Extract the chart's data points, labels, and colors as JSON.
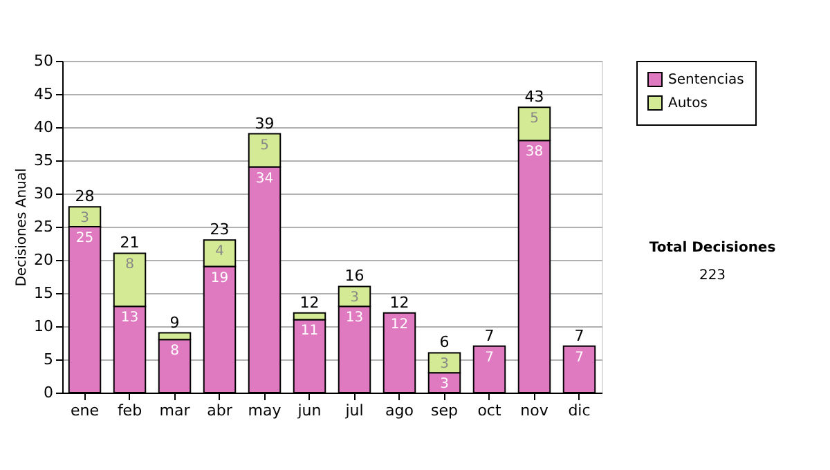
{
  "chart_data": {
    "type": "bar",
    "stacked": true,
    "ylabel": "Decisiones Anual",
    "categories": [
      "ene",
      "feb",
      "mar",
      "abr",
      "may",
      "jun",
      "jul",
      "ago",
      "sep",
      "oct",
      "nov",
      "dic"
    ],
    "series": [
      {
        "name": "Sentencias",
        "color": "#e07ac0",
        "values": [
          25,
          13,
          8,
          19,
          34,
          11,
          13,
          12,
          3,
          7,
          38,
          7
        ],
        "value_labels": [
          "25",
          "13",
          "8",
          "19",
          "34",
          "11",
          "13",
          "12",
          "3",
          "7",
          "38",
          "7"
        ]
      },
      {
        "name": "Autos",
        "color": "#d4ea94",
        "values": [
          3,
          8,
          1,
          4,
          5,
          1,
          3,
          null,
          3,
          null,
          5,
          null
        ],
        "value_labels": [
          "3",
          "8",
          null,
          "4",
          "5",
          null,
          "3",
          null,
          "3",
          null,
          "5",
          null
        ]
      }
    ],
    "totals": [
      "28",
      "21",
      "9",
      "23",
      "39",
      "12",
      "16",
      "12",
      "6",
      "7",
      "43",
      "7"
    ],
    "ylim": [
      0,
      50
    ],
    "yticks": [
      0,
      5,
      10,
      15,
      20,
      25,
      30,
      35,
      40,
      45,
      50
    ],
    "grid": "y",
    "legend": "right",
    "annotations": [
      "Total Decisiones",
      "223"
    ]
  }
}
